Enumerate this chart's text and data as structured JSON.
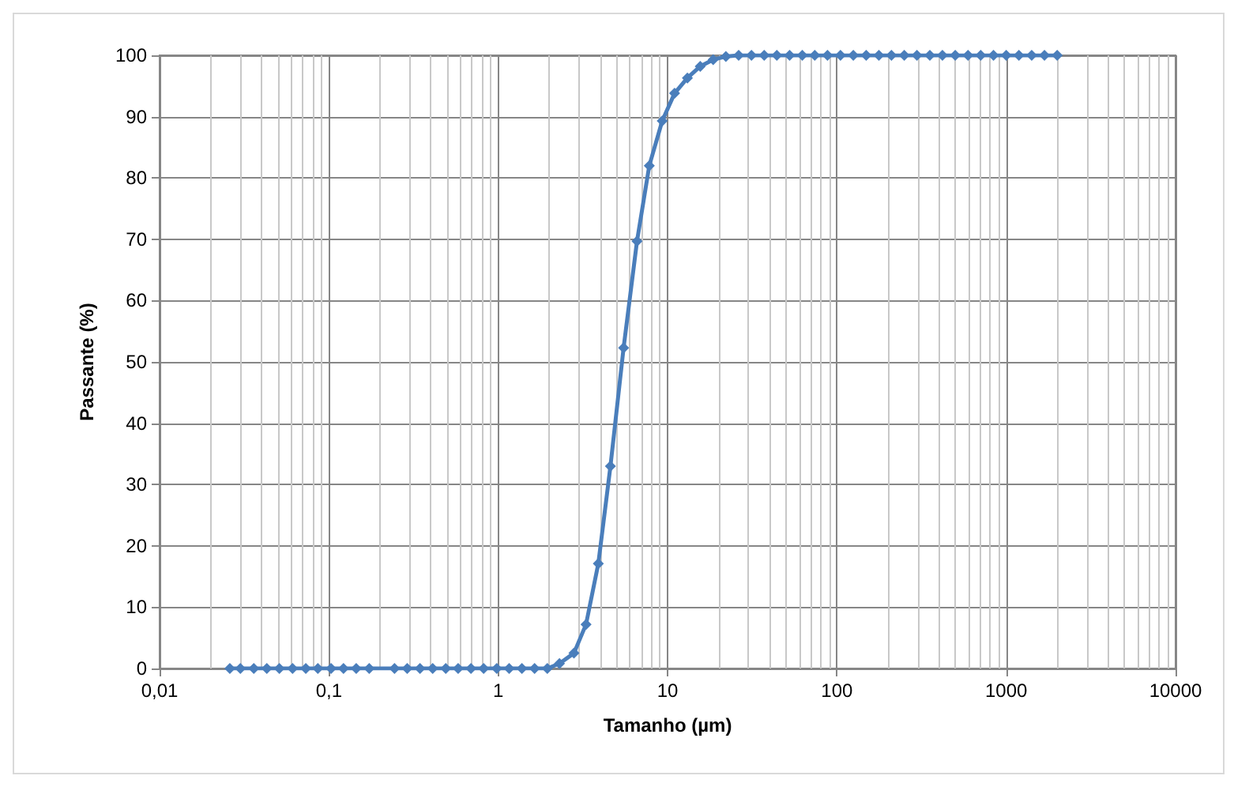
{
  "chart_data": {
    "type": "line",
    "xlabel": "Tamanho (µm)",
    "ylabel": "Passante (%)",
    "log": "x",
    "grid": true,
    "marker": "diamond",
    "line_style": "solid",
    "x": [
      0.026,
      0.03,
      0.036,
      0.043,
      0.051,
      0.061,
      0.073,
      0.086,
      0.103,
      0.122,
      0.145,
      0.173,
      0.244,
      0.29,
      0.345,
      0.41,
      0.49,
      0.58,
      0.69,
      0.82,
      0.98,
      1.16,
      1.38,
      1.64,
      1.95,
      2.3,
      2.8,
      3.3,
      3.9,
      4.6,
      5.5,
      6.6,
      7.8,
      9.3,
      11.0,
      13.1,
      15.6,
      18.6,
      22.1,
      26.3,
      31.3,
      37.2,
      44.2,
      52.6,
      62.5,
      74,
      88,
      105,
      125,
      149,
      177,
      210,
      250,
      297,
      354,
      420,
      500,
      595,
      707,
      841,
      1000,
      1189,
      1414,
      1682,
      2000
    ],
    "series": [
      {
        "color": "#4a7ebb",
        "values": [
          0,
          0,
          0,
          0,
          0,
          0,
          0,
          0,
          0,
          0,
          0,
          0,
          0,
          0,
          0,
          0,
          0,
          0,
          0,
          0,
          0,
          0,
          0,
          0,
          0,
          0.8,
          2.5,
          7.2,
          17.1,
          33,
          52.3,
          69.7,
          82,
          89.3,
          93.8,
          96.3,
          98.2,
          99.3,
          99.8,
          100,
          100,
          100,
          100,
          100,
          100,
          100,
          100,
          100,
          100,
          100,
          100,
          100,
          100,
          100,
          100,
          100,
          100,
          100,
          100,
          100,
          100,
          100,
          100,
          100,
          100
        ]
      }
    ],
    "xlim": [
      0.01,
      10000
    ],
    "xticks": [
      {
        "value": 0.01,
        "label": "0,01"
      },
      {
        "value": 0.1,
        "label": "0,1"
      },
      1,
      10,
      100,
      1000,
      10000
    ],
    "ylim": [
      0,
      100
    ],
    "yticks": [
      0,
      10,
      20,
      30,
      40,
      50,
      60,
      70,
      80,
      90,
      100
    ]
  }
}
